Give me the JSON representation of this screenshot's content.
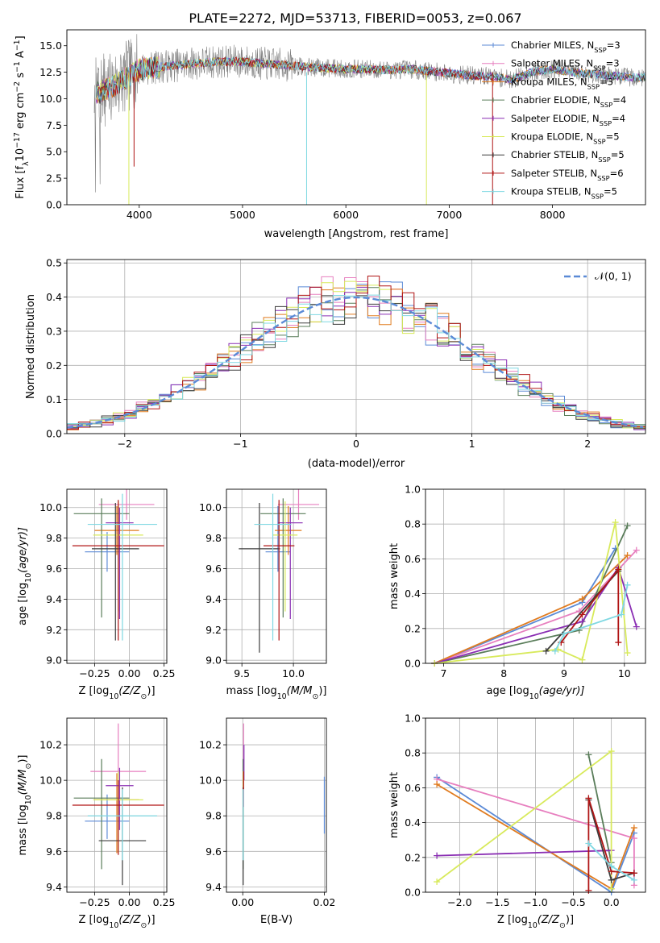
{
  "figure": {
    "title": "PLATE=2272, MJD=53713, FIBERID=0053, z=0.067"
  },
  "colors": {
    "Chabrier MILES": "#5b8ad6",
    "Salpeter MILES": "#e77fbf",
    "Kroupa MILES": "#e07b1f",
    "Chabrier ELODIE": "#5a7d5a",
    "Salpeter ELODIE": "#8a2eb3",
    "Kroupa ELODIE": "#d8ea5c",
    "Chabrier STELIB": "#3d3d3d",
    "Salpeter STELIB": "#b01515",
    "Kroupa STELIB": "#7fd8e2"
  },
  "chart_data": [
    {
      "type": "line",
      "xlabel": "wavelength [Angstrom, rest frame]",
      "ylabel": "Flux [f",
      "ylabel_sub": "λ",
      "ylabel_rest": "10",
      "ylabel_exp1": "−17",
      "ylabel_unit": " erg cm",
      "ylabel_exp2": "−2",
      "ylabel_s": " s",
      "ylabel_exp3": "−1",
      "ylabel_A": " A",
      "ylabel_exp4": "−1",
      "ylabel_end": "]",
      "xlim": [
        3300,
        8900
      ],
      "ylim": [
        0,
        16.5
      ],
      "xticks": [
        4000,
        5000,
        6000,
        7000,
        8000
      ],
      "yticks": [
        0.0,
        2.5,
        5.0,
        7.5,
        10.0,
        12.5,
        15.0
      ],
      "ytick_labels": [
        "0.0",
        "2.5",
        "5.0",
        "7.5",
        "10.0",
        "12.5",
        "15.0"
      ],
      "legend": [
        {
          "name": "Chabrier MILES",
          "n": "3"
        },
        {
          "name": "Salpeter MILES",
          "n": "3"
        },
        {
          "name": "Kroupa MILES",
          "n": "3"
        },
        {
          "name": "Chabrier ELODIE",
          "n": "4"
        },
        {
          "name": "Salpeter ELODIE",
          "n": "4"
        },
        {
          "name": "Kroupa ELODIE",
          "n": "5"
        },
        {
          "name": "Chabrier STELIB",
          "n": "5"
        },
        {
          "name": "Salpeter STELIB",
          "n": "6"
        },
        {
          "name": "Kroupa STELIB",
          "n": "5"
        }
      ],
      "legend_placement": "top-right",
      "data_trend": {
        "x": [
          3600,
          3800,
          4000,
          4200,
          4400,
          4600,
          4800,
          5000,
          5200,
          5400,
          5600,
          5800,
          6000,
          6200,
          6400,
          6600,
          6800,
          7000,
          7200,
          7400,
          7600,
          7800,
          8000,
          8200,
          8400,
          8800
        ],
        "y": [
          10.5,
          11.5,
          12.8,
          13.0,
          13.2,
          13.4,
          13.5,
          13.5,
          13.3,
          13.2,
          13.0,
          12.9,
          12.8,
          12.8,
          12.7,
          12.8,
          12.6,
          12.4,
          12.2,
          12.1,
          11.8,
          12.5,
          12.8,
          12.5,
          12.3,
          12.0
        ]
      },
      "dips": [
        {
          "x": 3950,
          "y": 3.6,
          "series": "Salpeter STELIB"
        },
        {
          "x": 3900,
          "y": 0.0,
          "series": "Kroupa ELODIE"
        },
        {
          "x": 5620,
          "y": 0.0,
          "series": "Kroupa STELIB"
        },
        {
          "x": 6780,
          "y": 0.0,
          "series": "Kroupa ELODIE"
        },
        {
          "x": 7420,
          "y": 0.0,
          "series": "Salpeter STELIB"
        }
      ]
    },
    {
      "type": "line",
      "xlabel": "(data-model)/error",
      "ylabel": "Normed distribution",
      "xlim": [
        -2.5,
        2.5
      ],
      "ylim": [
        0,
        0.51
      ],
      "xticks": [
        -2,
        -1,
        0,
        1,
        2
      ],
      "xtick_labels": [
        "−2",
        "−1",
        "0",
        "1",
        "2"
      ],
      "yticks": [
        0.0,
        0.1,
        0.2,
        0.3,
        0.4,
        0.5
      ],
      "ytick_labels": [
        "0.0",
        "0.1",
        "0.2",
        "0.3",
        "0.4",
        "0.5"
      ],
      "legend": [
        "𝒩(0, 1)"
      ],
      "legend_placement": "top-right",
      "grid": true,
      "reference_curve": {
        "name": "𝒩(0, 1)",
        "mean": 0,
        "sigma": 1,
        "color": "#5b8ad6"
      },
      "bin_width": 0.1
    },
    {
      "type": "scatter",
      "xlabel": "Z [log",
      "xlabel_sub": "10",
      "xlabel_rest": "(Z/Z",
      "xlabel_sub2": "⊙",
      "xlabel_end": ")]",
      "ylabel": "age  [log",
      "ylabel_sub": "10",
      "ylabel_rest": "(age/yr)]",
      "xlim": [
        -0.45,
        0.27
      ],
      "ylim": [
        8.98,
        10.12
      ],
      "xticks": [
        -0.25,
        0.0,
        0.25
      ],
      "xtick_labels": [
        "−0.25",
        "0.00",
        "0.25"
      ],
      "yticks": [
        9.0,
        9.2,
        9.4,
        9.6,
        9.8,
        10.0
      ],
      "ytick_labels": [
        "9.0",
        "9.2",
        "9.4",
        "9.6",
        "9.8",
        "10.0"
      ],
      "grid": true,
      "points": [
        {
          "series": "Chabrier MILES",
          "x": -0.16,
          "y": 9.71,
          "xerr": 0.16,
          "yerr_lo": 0.13,
          "yerr_hi": 0.13
        },
        {
          "series": "Salpeter MILES",
          "x": -0.02,
          "y": 10.02,
          "xerr": 0.2,
          "yerr_lo": 0.1,
          "yerr_hi": 0.1
        },
        {
          "series": "Kroupa MILES",
          "x": -0.09,
          "y": 9.85,
          "xerr": 0.16,
          "yerr_lo": 0.16,
          "yerr_hi": 0.16
        },
        {
          "series": "Chabrier ELODIE",
          "x": -0.2,
          "y": 9.96,
          "xerr": 0.2,
          "yerr_lo": 0.68,
          "yerr_hi": 0.1
        },
        {
          "series": "Salpeter ELODIE",
          "x": -0.07,
          "y": 9.9,
          "xerr": 0.1,
          "yerr_lo": 0.63,
          "yerr_hi": 0.1
        },
        {
          "series": "Kroupa ELODIE",
          "x": -0.08,
          "y": 9.82,
          "xerr": 0.18,
          "yerr_lo": 0.5,
          "yerr_hi": 0.22
        },
        {
          "series": "Chabrier STELIB",
          "x": -0.1,
          "y": 9.73,
          "xerr": 0.17,
          "yerr_lo": 0.6,
          "yerr_hi": 0.3
        },
        {
          "series": "Salpeter STELIB",
          "x": -0.08,
          "y": 9.75,
          "xerr": 0.33,
          "yerr_lo": 0.62,
          "yerr_hi": 0.3
        },
        {
          "series": "Kroupa STELIB",
          "x": -0.05,
          "y": 9.89,
          "xerr": 0.25,
          "yerr_lo": 0.76,
          "yerr_hi": 0.2
        }
      ]
    },
    {
      "type": "scatter",
      "xlabel": "mass [log",
      "xlabel_sub": "10",
      "xlabel_rest": "(M/M",
      "xlabel_sub2": "⊙",
      "xlabel_end": ")]",
      "xlim": [
        9.35,
        10.32
      ],
      "ylim": [
        8.98,
        10.12
      ],
      "xticks": [
        9.5,
        10.0
      ],
      "xtick_labels": [
        "9.5",
        "10.0"
      ],
      "yticks": [
        9.0,
        9.2,
        9.4,
        9.6,
        9.8,
        10.0
      ],
      "ytick_labels": [
        "9.0",
        "9.2",
        "9.4",
        "9.6",
        "9.8",
        "10.0"
      ],
      "grid": true,
      "points": [
        {
          "series": "Chabrier MILES",
          "x": 9.85,
          "y": 9.71,
          "xerr": 0.12,
          "yerr_lo": 0.13,
          "yerr_hi": 0.3
        },
        {
          "series": "Salpeter MILES",
          "x": 10.05,
          "y": 10.02,
          "xerr": 0.2,
          "yerr_lo": 0.1,
          "yerr_hi": 0.1
        },
        {
          "series": "Kroupa MILES",
          "x": 9.95,
          "y": 9.85,
          "xerr": 0.13,
          "yerr_lo": 0.16,
          "yerr_hi": 0.16
        },
        {
          "series": "Chabrier ELODIE",
          "x": 9.9,
          "y": 9.96,
          "xerr": 0.22,
          "yerr_lo": 0.68,
          "yerr_hi": 0.1
        },
        {
          "series": "Salpeter ELODIE",
          "x": 9.97,
          "y": 9.9,
          "xerr": 0.12,
          "yerr_lo": 0.63,
          "yerr_hi": 0.1
        },
        {
          "series": "Kroupa ELODIE",
          "x": 9.92,
          "y": 9.82,
          "xerr": 0.12,
          "yerr_lo": 0.5,
          "yerr_hi": 0.22
        },
        {
          "series": "Chabrier STELIB",
          "x": 9.67,
          "y": 9.73,
          "xerr": 0.2,
          "yerr_lo": 0.68,
          "yerr_hi": 0.3
        },
        {
          "series": "Salpeter STELIB",
          "x": 9.86,
          "y": 9.75,
          "xerr": 0.15,
          "yerr_lo": 0.62,
          "yerr_hi": 0.3
        },
        {
          "series": "Kroupa STELIB",
          "x": 9.8,
          "y": 9.89,
          "xerr": 0.18,
          "yerr_lo": 0.76,
          "yerr_hi": 0.2
        }
      ]
    },
    {
      "type": "line",
      "xlabel": "age  [log",
      "xlabel_sub": "10",
      "xlabel_rest": "(age/yr)]",
      "ylabel": "mass weight",
      "xlim": [
        6.7,
        10.35
      ],
      "ylim": [
        0,
        1.0
      ],
      "xticks": [
        7,
        8,
        9,
        10
      ],
      "xtick_labels": [
        "7",
        "8",
        "9",
        "10"
      ],
      "yticks": [
        0.0,
        0.2,
        0.4,
        0.6,
        0.8,
        1.0
      ],
      "ytick_labels": [
        "0.0",
        "0.2",
        "0.4",
        "0.6",
        "0.8",
        "1.0"
      ],
      "grid": true,
      "series": [
        {
          "name": "Chabrier MILES",
          "x": [
            6.85,
            9.3,
            9.85
          ],
          "y": [
            0.0,
            0.35,
            0.66
          ]
        },
        {
          "name": "Salpeter MILES",
          "x": [
            6.85,
            9.25,
            10.2
          ],
          "y": [
            0.0,
            0.3,
            0.65
          ]
        },
        {
          "name": "Kroupa MILES",
          "x": [
            6.85,
            9.3,
            10.05
          ],
          "y": [
            0.0,
            0.37,
            0.62
          ]
        },
        {
          "name": "Chabrier ELODIE",
          "x": [
            6.85,
            9.25,
            10.05
          ],
          "y": [
            0.0,
            0.19,
            0.79
          ]
        },
        {
          "name": "Salpeter ELODIE",
          "x": [
            6.85,
            9.3,
            9.9,
            10.2
          ],
          "y": [
            0.0,
            0.24,
            0.55,
            0.21
          ]
        },
        {
          "name": "Kroupa ELODIE",
          "x": [
            6.85,
            8.9,
            9.3,
            9.85,
            10.05
          ],
          "y": [
            0.0,
            0.08,
            0.02,
            0.81,
            0.06
          ]
        },
        {
          "name": "Chabrier STELIB",
          "x": [
            8.7,
            9.9
          ],
          "y": [
            0.07,
            0.53
          ]
        },
        {
          "name": "Salpeter STELIB",
          "x": [
            8.95,
            9.3,
            9.9,
            9.9
          ],
          "y": [
            0.12,
            0.28,
            0.54,
            0.12
          ]
        },
        {
          "name": "Kroupa STELIB",
          "x": [
            8.85,
            9.0,
            9.95,
            10.05
          ],
          "y": [
            0.07,
            0.17,
            0.28,
            0.45
          ]
        }
      ]
    },
    {
      "type": "scatter",
      "xlabel": "Z [log",
      "xlabel_sub": "10",
      "xlabel_rest": "(Z/Z",
      "xlabel_sub2": "⊙",
      "xlabel_end": ")]",
      "ylabel": "mass [log",
      "ylabel_sub": "10",
      "ylabel_rest": "(M/M",
      "ylabel_sub2": "⊙",
      "ylabel_end": ")]",
      "xlim": [
        -0.45,
        0.27
      ],
      "ylim": [
        9.37,
        10.35
      ],
      "xticks": [
        -0.25,
        0.0,
        0.25
      ],
      "xtick_labels": [
        "−0.25",
        "0.00",
        "0.25"
      ],
      "yticks": [
        9.4,
        9.6,
        9.8,
        10.0,
        10.2
      ],
      "ytick_labels": [
        "9.4",
        "9.6",
        "9.8",
        "10.0",
        "10.2"
      ],
      "grid": true,
      "points": [
        {
          "series": "Chabrier MILES",
          "x": -0.16,
          "y": 9.77,
          "xerr": 0.16,
          "yerr_lo": 0.1,
          "yerr_hi": 0.15
        },
        {
          "series": "Salpeter MILES",
          "x": -0.08,
          "y": 10.05,
          "xerr": 0.2,
          "yerr_lo": 0.18,
          "yerr_hi": 0.27
        },
        {
          "series": "Kroupa MILES",
          "x": -0.09,
          "y": 9.89,
          "xerr": 0.16,
          "yerr_lo": 0.3,
          "yerr_hi": 0.15
        },
        {
          "series": "Chabrier ELODIE",
          "x": -0.2,
          "y": 9.9,
          "xerr": 0.2,
          "yerr_lo": 0.4,
          "yerr_hi": 0.22
        },
        {
          "series": "Salpeter ELODIE",
          "x": -0.07,
          "y": 9.97,
          "xerr": 0.1,
          "yerr_lo": 0.25,
          "yerr_hi": 0.1
        },
        {
          "series": "Kroupa ELODIE",
          "x": -0.08,
          "y": 9.89,
          "xerr": 0.18,
          "yerr_lo": 0.3,
          "yerr_hi": 0.16
        },
        {
          "series": "Chabrier STELIB",
          "x": -0.05,
          "y": 9.66,
          "xerr": 0.17,
          "yerr_lo": 0.25,
          "yerr_hi": 0.3
        },
        {
          "series": "Salpeter STELIB",
          "x": -0.08,
          "y": 9.86,
          "xerr": 0.33,
          "yerr_lo": 0.28,
          "yerr_hi": 0.14
        },
        {
          "series": "Kroupa STELIB",
          "x": -0.05,
          "y": 9.8,
          "xerr": 0.25,
          "yerr_lo": 0.25,
          "yerr_hi": 0.15
        }
      ]
    },
    {
      "type": "scatter",
      "xlabel": "E(B-V)",
      "xlim": [
        -0.004,
        0.0205
      ],
      "ylim": [
        9.37,
        10.35
      ],
      "xticks": [
        0.0,
        0.02
      ],
      "xtick_labels": [
        "0.00",
        "0.02"
      ],
      "yticks": [
        9.4,
        9.6,
        9.8,
        10.0,
        10.2
      ],
      "ytick_labels": [
        "9.4",
        "9.6",
        "9.8",
        "10.0",
        "10.2"
      ],
      "grid": true,
      "points": [
        {
          "series": "Chabrier MILES",
          "x": 0.02,
          "y": 9.85,
          "yerr_lo": 0.15,
          "yerr_hi": 0.17
        },
        {
          "series": "Salpeter MILES",
          "x": 0.0002,
          "y": 10.05,
          "yerr_lo": 0.2,
          "yerr_hi": 0.27
        },
        {
          "series": "Kroupa MILES",
          "x": 0.0001,
          "y": 9.89,
          "yerr_lo": 0.3,
          "yerr_hi": 0.15
        },
        {
          "series": "Chabrier ELODIE",
          "x": 0.0001,
          "y": 9.9,
          "yerr_lo": 0.4,
          "yerr_hi": 0.22
        },
        {
          "series": "Salpeter ELODIE",
          "x": 0.0003,
          "y": 10.1,
          "yerr_lo": 0.1,
          "yerr_hi": 0.1
        },
        {
          "series": "Kroupa ELODIE",
          "x": 0.0001,
          "y": 9.89,
          "yerr_lo": 0.3,
          "yerr_hi": 0.16
        },
        {
          "series": "Chabrier STELIB",
          "x": 0.0001,
          "y": 9.66,
          "yerr_lo": 0.25,
          "yerr_hi": 0.3
        },
        {
          "series": "Salpeter STELIB",
          "x": 0.0002,
          "y": 10.0,
          "yerr_lo": 0.05,
          "yerr_hi": 0.05
        },
        {
          "series": "Kroupa STELIB",
          "x": 0.0001,
          "y": 9.8,
          "yerr_lo": 0.25,
          "yerr_hi": 0.15
        }
      ]
    },
    {
      "type": "line",
      "xlabel": "Z [log",
      "xlabel_sub": "10",
      "xlabel_rest": "(Z/Z",
      "xlabel_sub2": "⊙",
      "xlabel_end": ")]",
      "ylabel": "mass weight",
      "xlim": [
        -2.45,
        0.45
      ],
      "ylim": [
        0,
        1.0
      ],
      "xticks": [
        -2.0,
        -1.5,
        -1.0,
        -0.5,
        0.0
      ],
      "xtick_labels": [
        "−2.0",
        "−1.5",
        "−1.0",
        "−0.5",
        "0.0"
      ],
      "yticks": [
        0.0,
        0.2,
        0.4,
        0.6,
        0.8,
        1.0
      ],
      "ytick_labels": [
        "0.0",
        "0.2",
        "0.4",
        "0.6",
        "0.8",
        "1.0"
      ],
      "grid": true,
      "series": [
        {
          "name": "Chabrier MILES",
          "x": [
            -2.3,
            0.0,
            0.3
          ],
          "y": [
            0.66,
            0.0,
            0.34
          ]
        },
        {
          "name": "Salpeter MILES",
          "x": [
            -2.3,
            0.3,
            0.3
          ],
          "y": [
            0.65,
            0.31,
            0.04
          ]
        },
        {
          "name": "Kroupa MILES",
          "x": [
            -2.3,
            0.0,
            0.3
          ],
          "y": [
            0.62,
            0.02,
            0.37
          ]
        },
        {
          "name": "Chabrier ELODIE",
          "x": [
            -0.3,
            0.0
          ],
          "y": [
            0.79,
            0.17
          ]
        },
        {
          "name": "Salpeter ELODIE",
          "x": [
            -2.3,
            0.0
          ],
          "y": [
            0.21,
            0.24
          ]
        },
        {
          "name": "Kroupa ELODIE",
          "x": [
            -2.3,
            0.0,
            0.0
          ],
          "y": [
            0.06,
            0.81,
            0.02
          ]
        },
        {
          "name": "Chabrier STELIB",
          "x": [
            -0.3,
            0.0,
            0.3
          ],
          "y": [
            0.53,
            0.07,
            0.11
          ]
        },
        {
          "name": "Salpeter STELIB",
          "x": [
            -0.3,
            -0.3,
            0.0,
            0.3
          ],
          "y": [
            0.01,
            0.54,
            0.12,
            0.11
          ]
        },
        {
          "name": "Kroupa STELIB",
          "x": [
            -0.3,
            0.0,
            0.3
          ],
          "y": [
            0.28,
            0.15,
            0.07
          ]
        }
      ]
    }
  ]
}
